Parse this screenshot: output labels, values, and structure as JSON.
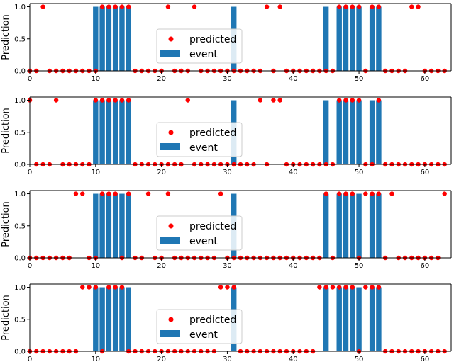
{
  "colors": {
    "event": "#1f77b4",
    "predicted": "#ff0000",
    "axis": "#000000",
    "legend_border": "#cccccc"
  },
  "chart_data": [
    {
      "type": "bar",
      "panel": 1,
      "ylabel": "Prediction",
      "xlim": [
        0,
        64
      ],
      "ylim": [
        0,
        1.05
      ],
      "x_ticks": [
        0,
        10,
        20,
        30,
        40,
        50,
        60
      ],
      "y_ticks": [
        0.0,
        0.5,
        1.0
      ],
      "legend_position": "center",
      "series": [
        {
          "name": "predicted",
          "kind": "scatter",
          "values": [
            0,
            0,
            1,
            0,
            0,
            0,
            0,
            0,
            0,
            0,
            0,
            1,
            1,
            1,
            1,
            1,
            0,
            0,
            0,
            0,
            0,
            1,
            0,
            0,
            0,
            1,
            0,
            0,
            0,
            0,
            0,
            0,
            0,
            0,
            0,
            0,
            1,
            0,
            1,
            0,
            0,
            0,
            0,
            0,
            0,
            0,
            0,
            1,
            1,
            1,
            1,
            0,
            1,
            1,
            0,
            0,
            0,
            0,
            1,
            1,
            0,
            0,
            0,
            0
          ]
        },
        {
          "name": "event",
          "kind": "bar",
          "values": [
            0,
            0,
            0,
            0,
            0,
            0,
            0,
            0,
            0,
            0,
            1,
            1,
            1,
            1,
            1,
            1,
            0,
            0,
            0,
            0,
            0,
            0,
            0,
            0,
            0,
            0,
            0,
            0,
            0,
            0,
            0,
            1,
            0,
            0,
            0,
            0,
            0,
            0,
            0,
            0,
            0,
            0,
            0,
            0,
            0,
            1,
            0,
            1,
            1,
            1,
            1,
            0,
            1,
            1,
            0,
            0,
            0,
            0,
            0,
            0,
            0,
            0,
            0,
            0
          ]
        }
      ]
    },
    {
      "type": "bar",
      "panel": 2,
      "ylabel": "Prediction",
      "xlim": [
        0,
        64
      ],
      "ylim": [
        0,
        1.05
      ],
      "x_ticks": [
        0,
        10,
        20,
        30,
        40,
        50,
        60
      ],
      "y_ticks": [
        0.0,
        0.5,
        1.0
      ],
      "legend_position": "center",
      "series": [
        {
          "name": "predicted",
          "kind": "scatter",
          "values": [
            1,
            0,
            0,
            0,
            1,
            0,
            0,
            0,
            0,
            0,
            1,
            1,
            1,
            1,
            1,
            1,
            0,
            0,
            0,
            0,
            0,
            0,
            0,
            0,
            1,
            0,
            0,
            0,
            0,
            0,
            0,
            0,
            0,
            0,
            0,
            1,
            0,
            1,
            1,
            0,
            0,
            0,
            0,
            0,
            0,
            0,
            0,
            1,
            1,
            1,
            1,
            0,
            0,
            1,
            0,
            0,
            0,
            0,
            0,
            0,
            0,
            0,
            0,
            0
          ]
        },
        {
          "name": "event",
          "kind": "bar",
          "values": [
            0,
            0,
            0,
            0,
            0,
            0,
            0,
            0,
            0,
            0,
            1,
            1,
            1,
            1,
            1,
            1,
            0,
            0,
            0,
            0,
            0,
            0,
            0,
            0,
            0,
            0,
            0,
            0,
            0,
            0,
            0,
            1,
            0,
            0,
            0,
            0,
            0,
            0,
            0,
            0,
            0,
            0,
            0,
            0,
            0,
            1,
            0,
            1,
            1,
            1,
            1,
            0,
            1,
            1,
            0,
            0,
            0,
            0,
            0,
            0,
            0,
            0,
            0,
            0
          ]
        }
      ]
    },
    {
      "type": "bar",
      "panel": 3,
      "ylabel": "Prediction",
      "xlim": [
        0,
        64
      ],
      "ylim": [
        0,
        1.05
      ],
      "x_ticks": [
        0,
        10,
        20,
        30,
        40,
        50,
        60
      ],
      "y_ticks": [
        0.0,
        0.5,
        1.0
      ],
      "legend_position": "center",
      "series": [
        {
          "name": "predicted",
          "kind": "scatter",
          "values": [
            0,
            0,
            0,
            0,
            0,
            0,
            0,
            1,
            1,
            0,
            0,
            1,
            1,
            1,
            0,
            1,
            0,
            0,
            1,
            0,
            0,
            1,
            0,
            0,
            0,
            0,
            0,
            0,
            0,
            1,
            0,
            0,
            0,
            0,
            0,
            0,
            0,
            0,
            0,
            0,
            0,
            0,
            0,
            0,
            0,
            1,
            0,
            1,
            1,
            1,
            0,
            1,
            1,
            1,
            0,
            1,
            0,
            0,
            0,
            0,
            0,
            0,
            0,
            1
          ]
        },
        {
          "name": "event",
          "kind": "bar",
          "values": [
            0,
            0,
            0,
            0,
            0,
            0,
            0,
            0,
            0,
            0,
            1,
            1,
            1,
            1,
            1,
            1,
            0,
            0,
            0,
            0,
            0,
            0,
            0,
            0,
            0,
            0,
            0,
            0,
            0,
            0,
            0,
            1,
            0,
            0,
            0,
            0,
            0,
            0,
            0,
            0,
            0,
            0,
            0,
            0,
            0,
            1,
            0,
            1,
            1,
            1,
            1,
            0,
            1,
            1,
            0,
            0,
            0,
            0,
            0,
            0,
            0,
            0,
            0,
            0
          ]
        }
      ]
    },
    {
      "type": "bar",
      "panel": 4,
      "ylabel": "Prediction",
      "xlim": [
        0,
        64
      ],
      "ylim": [
        0,
        1.05
      ],
      "x_ticks": [
        0,
        10,
        20,
        30,
        40,
        50,
        60
      ],
      "y_ticks": [
        0.0,
        0.5,
        1.0
      ],
      "legend_position": "center",
      "series": [
        {
          "name": "predicted",
          "kind": "scatter",
          "values": [
            0,
            0,
            0,
            0,
            0,
            0,
            0,
            0,
            1,
            1,
            1,
            0,
            1,
            1,
            1,
            0,
            0,
            0,
            0,
            0,
            0,
            0,
            0,
            0,
            0,
            0,
            0,
            0,
            0,
            1,
            1,
            1,
            0,
            0,
            0,
            0,
            0,
            0,
            0,
            0,
            0,
            0,
            0,
            0,
            1,
            1,
            1,
            1,
            1,
            1,
            0,
            1,
            1,
            1,
            0,
            0,
            0,
            0,
            0,
            0,
            0,
            0,
            0,
            0
          ]
        },
        {
          "name": "event",
          "kind": "bar",
          "values": [
            0,
            0,
            0,
            0,
            0,
            0,
            0,
            0,
            0,
            0,
            1,
            1,
            1,
            1,
            1,
            1,
            0,
            0,
            0,
            0,
            0,
            0,
            0,
            0,
            0,
            0,
            0,
            0,
            0,
            0,
            0,
            1,
            0,
            0,
            0,
            0,
            0,
            0,
            0,
            0,
            0,
            0,
            0,
            0,
            0,
            1,
            0,
            1,
            1,
            1,
            1,
            0,
            1,
            1,
            0,
            0,
            0,
            0,
            0,
            0,
            0,
            0,
            0,
            0
          ]
        }
      ]
    }
  ]
}
